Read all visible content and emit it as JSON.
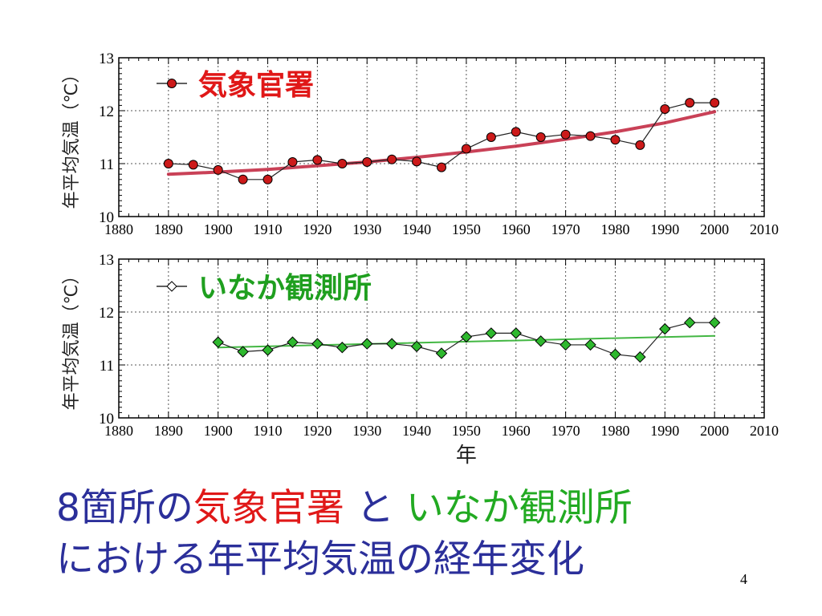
{
  "colors": {
    "red_series": "#cc1a1a",
    "red_trend": "#c0203a",
    "green_series": "#2eb82e",
    "green_trend": "#22aa22",
    "caption_blue": "#2b2f9a",
    "caption_red": "#e01818",
    "caption_green": "#22aa22",
    "legend_red": "#e01818",
    "legend_green": "#1f9f1f"
  },
  "chart_data": [
    {
      "type": "line",
      "title": "",
      "xlabel": "",
      "ylabel": "年平均気温（℃）",
      "xlim": [
        1880,
        2010
      ],
      "ylim": [
        10,
        13
      ],
      "x_ticks": [
        1880,
        1890,
        1900,
        1910,
        1920,
        1930,
        1940,
        1950,
        1960,
        1970,
        1980,
        1990,
        2000,
        2010
      ],
      "y_ticks": [
        10,
        11,
        12,
        13
      ],
      "grid": true,
      "legend_position": "top-left",
      "series": [
        {
          "name": "気象官署",
          "marker": "circle",
          "x": [
            1890,
            1895,
            1900,
            1905,
            1910,
            1915,
            1920,
            1925,
            1930,
            1935,
            1940,
            1945,
            1950,
            1955,
            1960,
            1965,
            1970,
            1975,
            1980,
            1985,
            1990,
            1995,
            2000
          ],
          "y": [
            11.0,
            10.98,
            10.88,
            10.7,
            10.7,
            11.03,
            11.07,
            11.0,
            11.03,
            11.08,
            11.04,
            10.93,
            11.28,
            11.5,
            11.6,
            11.5,
            11.55,
            11.52,
            11.45,
            11.35,
            12.03,
            12.15,
            12.15
          ]
        }
      ],
      "trend": {
        "x": [
          1890,
          1900,
          1910,
          1920,
          1930,
          1940,
          1950,
          1960,
          1970,
          1980,
          1990,
          2000
        ],
        "y": [
          10.8,
          10.84,
          10.89,
          10.96,
          11.03,
          11.12,
          11.22,
          11.33,
          11.46,
          11.6,
          11.77,
          11.98
        ]
      }
    },
    {
      "type": "line",
      "title": "",
      "xlabel": "年",
      "ylabel": "年平均気温（℃）",
      "xlim": [
        1880,
        2010
      ],
      "ylim": [
        10,
        13
      ],
      "x_ticks": [
        1880,
        1890,
        1900,
        1910,
        1920,
        1930,
        1940,
        1950,
        1960,
        1970,
        1980,
        1990,
        2000,
        2010
      ],
      "y_ticks": [
        10,
        11,
        12,
        13
      ],
      "grid": true,
      "legend_position": "top-left",
      "series": [
        {
          "name": "いなか観測所",
          "marker": "diamond",
          "x": [
            1900,
            1905,
            1910,
            1915,
            1920,
            1925,
            1930,
            1935,
            1940,
            1945,
            1950,
            1955,
            1960,
            1965,
            1970,
            1975,
            1980,
            1985,
            1990,
            1995,
            2000
          ],
          "y": [
            11.43,
            11.25,
            11.28,
            11.43,
            11.4,
            11.33,
            11.4,
            11.4,
            11.35,
            11.22,
            11.53,
            11.6,
            11.6,
            11.45,
            11.38,
            11.38,
            11.2,
            11.15,
            11.68,
            11.8,
            11.8
          ]
        }
      ],
      "trend": {
        "x": [
          1900,
          2000
        ],
        "y": [
          11.33,
          11.55
        ]
      }
    }
  ],
  "caption": {
    "line1": [
      {
        "text": "8箇所の",
        "color": "#2b2f9a"
      },
      {
        "text": "気象官署",
        "color": "#e01818"
      },
      {
        "text": " と ",
        "color": "#2b2f9a"
      },
      {
        "text": "いなか観測所",
        "color": "#22aa22"
      }
    ],
    "line2": [
      {
        "text": "における年平均気温の経年変化",
        "color": "#2b2f9a"
      }
    ]
  },
  "page_number": "4"
}
